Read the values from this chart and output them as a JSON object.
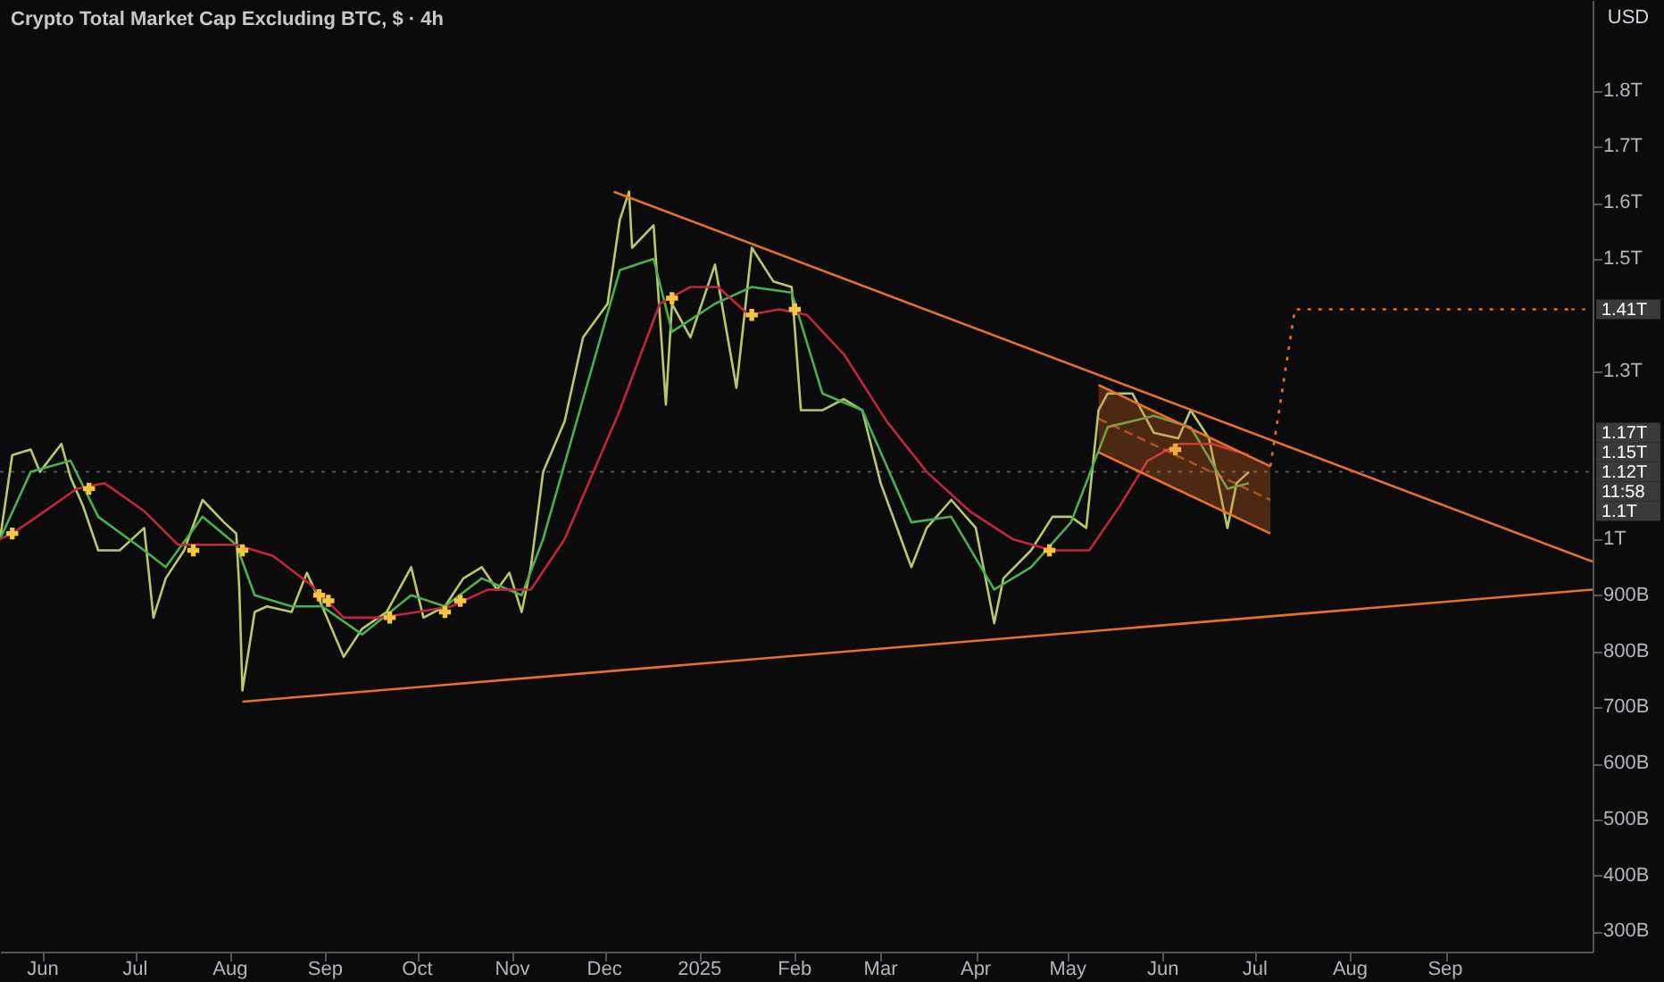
{
  "chart_data": {
    "type": "line",
    "title": "Crypto Total Market Cap Excluding BTC, $ · 4h",
    "xlim": [
      "2024-05-18",
      "2025-10-19"
    ],
    "xticks": [
      {
        "value": "2024-06-01",
        "label": "Jun"
      },
      {
        "value": "2024-07-01",
        "label": "Jul"
      },
      {
        "value": "2024-08-01",
        "label": "Aug"
      },
      {
        "value": "2024-09-01",
        "label": "Sep"
      },
      {
        "value": "2024-10-01",
        "label": "Oct"
      },
      {
        "value": "2024-11-01",
        "label": "Nov"
      },
      {
        "value": "2024-12-01",
        "label": "Dec"
      },
      {
        "value": "2025-01-01",
        "label": "2025"
      },
      {
        "value": "2025-02-01",
        "label": "Feb"
      },
      {
        "value": "2025-03-01",
        "label": "Mar"
      },
      {
        "value": "2025-04-01",
        "label": "Apr"
      },
      {
        "value": "2025-05-01",
        "label": "May"
      },
      {
        "value": "2025-06-01",
        "label": "Jun"
      },
      {
        "value": "2025-07-01",
        "label": "Jul"
      },
      {
        "value": "2025-08-01",
        "label": "Aug"
      },
      {
        "value": "2025-09-01",
        "label": "Sep"
      }
    ],
    "ylim": [
      264000000000.0,
      1962000000000.0
    ],
    "yticks": [
      {
        "value": 300000000000.0,
        "label": "300B"
      },
      {
        "value": 400000000000.0,
        "label": "400B"
      },
      {
        "value": 500000000000.0,
        "label": "500B"
      },
      {
        "value": 600000000000.0,
        "label": "600B"
      },
      {
        "value": 700000000000.0,
        "label": "700B"
      },
      {
        "value": 800000000000.0,
        "label": "800B"
      },
      {
        "value": 900000000000.0,
        "label": "900B"
      },
      {
        "value": 1000000000000.0,
        "label": "1T"
      },
      {
        "value": 1300000000000.0,
        "label": "1.3T"
      },
      {
        "value": 1500000000000.0,
        "label": "1.5T"
      },
      {
        "value": 1600000000000.0,
        "label": "1.6T"
      },
      {
        "value": 1700000000000.0,
        "label": "1.7T"
      },
      {
        "value": 1800000000000.0,
        "label": "1.8T"
      }
    ],
    "grid": false,
    "series": [
      {
        "type": "line",
        "color": "#b9c96a",
        "x": [
          "2024-05-18",
          "2024-05-22",
          "2024-05-28",
          "2024-05-31",
          "2024-06-07",
          "2024-06-10",
          "2024-06-14",
          "2024-06-19",
          "2024-06-26",
          "2024-07-04",
          "2024-07-07",
          "2024-07-11",
          "2024-07-17",
          "2024-07-23",
          "2024-07-30",
          "2024-08-03",
          "2024-08-04",
          "2024-08-05",
          "2024-08-09",
          "2024-08-13",
          "2024-08-21",
          "2024-08-26",
          "2024-08-31",
          "2024-09-07",
          "2024-09-13",
          "2024-09-21",
          "2024-09-29",
          "2024-10-03",
          "2024-10-10",
          "2024-10-16",
          "2024-10-22",
          "2024-10-27",
          "2024-10-31",
          "2024-11-04",
          "2024-11-07",
          "2024-11-11",
          "2024-11-18",
          "2024-11-24",
          "2024-12-02",
          "2024-12-06",
          "2024-12-09",
          "2024-12-10",
          "2024-12-17",
          "2024-12-21",
          "2024-12-23",
          "2024-12-29",
          "2025-01-06",
          "2025-01-13",
          "2025-01-18",
          "2025-01-25",
          "2025-01-31",
          "2025-02-03",
          "2025-02-10",
          "2025-02-17",
          "2025-02-23",
          "2025-03-01",
          "2025-03-11",
          "2025-03-16",
          "2025-03-24",
          "2025-04-01",
          "2025-04-07",
          "2025-04-10",
          "2025-04-19",
          "2025-04-26",
          "2025-05-02",
          "2025-05-07",
          "2025-05-11",
          "2025-05-14",
          "2025-05-22",
          "2025-05-29",
          "2025-06-06",
          "2025-06-10",
          "2025-06-16",
          "2025-06-22",
          "2025-06-25",
          "2025-06-29"
        ],
        "values": [
          1000000000000.0,
          1150000000000.0,
          1160000000000.0,
          1120000000000.0,
          1170000000000.0,
          1110000000000.0,
          1060000000000.0,
          980000000000.0,
          980000000000.0,
          1020000000000.0,
          860000000000.0,
          930000000000.0,
          980000000000.0,
          1070000000000.0,
          1030000000000.0,
          1010000000000.0,
          910000000000.0,
          730000000000.0,
          870000000000.0,
          880000000000.0,
          870000000000.0,
          940000000000.0,
          880000000000.0,
          790000000000.0,
          840000000000.0,
          870000000000.0,
          950000000000.0,
          860000000000.0,
          880000000000.0,
          930000000000.0,
          950000000000.0,
          910000000000.0,
          940000000000.0,
          870000000000.0,
          950000000000.0,
          1120000000000.0,
          1210000000000.0,
          1360000000000.0,
          1420000000000.0,
          1570000000000.0,
          1620000000000.0,
          1520000000000.0,
          1560000000000.0,
          1240000000000.0,
          1420000000000.0,
          1360000000000.0,
          1490000000000.0,
          1270000000000.0,
          1520000000000.0,
          1460000000000.0,
          1450000000000.0,
          1230000000000.0,
          1230000000000.0,
          1250000000000.0,
          1230000000000.0,
          1100000000000.0,
          950000000000.0,
          1020000000000.0,
          1070000000000.0,
          1020000000000.0,
          850000000000.0,
          930000000000.0,
          980000000000.0,
          1040000000000.0,
          1040000000000.0,
          1020000000000.0,
          1230000000000.0,
          1260000000000.0,
          1260000000000.0,
          1190000000000.0,
          1180000000000.0,
          1230000000000.0,
          1180000000000.0,
          1020000000000.0,
          1100000000000.0,
          1120000000000.0
        ]
      },
      {
        "type": "line",
        "color": "#4caf50",
        "x": [
          "2024-05-18",
          "2024-05-28",
          "2024-06-10",
          "2024-06-19",
          "2024-07-04",
          "2024-07-11",
          "2024-07-23",
          "2024-08-03",
          "2024-08-09",
          "2024-08-21",
          "2024-08-31",
          "2024-09-13",
          "2024-09-29",
          "2024-10-10",
          "2024-10-22",
          "2024-11-04",
          "2024-11-11",
          "2024-11-24",
          "2024-12-06",
          "2024-12-17",
          "2024-12-23",
          "2025-01-06",
          "2025-01-18",
          "2025-01-31",
          "2025-02-10",
          "2025-02-23",
          "2025-03-11",
          "2025-03-24",
          "2025-04-07",
          "2025-04-19",
          "2025-05-02",
          "2025-05-14",
          "2025-05-29",
          "2025-06-10",
          "2025-06-22",
          "2025-06-29"
        ],
        "values": [
          1000000000000.0,
          1120000000000.0,
          1140000000000.0,
          1040000000000.0,
          980000000000.0,
          950000000000.0,
          1040000000000.0,
          990000000000.0,
          900000000000.0,
          880000000000.0,
          880000000000.0,
          830000000000.0,
          900000000000.0,
          880000000000.0,
          930000000000.0,
          900000000000.0,
          1000000000000.0,
          1250000000000.0,
          1480000000000.0,
          1500000000000.0,
          1370000000000.0,
          1420000000000.0,
          1450000000000.0,
          1440000000000.0,
          1260000000000.0,
          1230000000000.0,
          1030000000000.0,
          1040000000000.0,
          910000000000.0,
          950000000000.0,
          1030000000000.0,
          1200000000000.0,
          1220000000000.0,
          1200000000000.0,
          1090000000000.0,
          1100000000000.0
        ]
      },
      {
        "type": "line",
        "color": "#c2263f",
        "x": [
          "2024-05-18",
          "2024-05-22",
          "2024-05-30",
          "2024-06-12",
          "2024-06-21",
          "2024-07-04",
          "2024-07-15",
          "2024-07-27",
          "2024-08-03",
          "2024-08-15",
          "2024-08-27",
          "2024-09-07",
          "2024-09-19",
          "2024-10-01",
          "2024-10-12",
          "2024-10-24",
          "2024-11-07",
          "2024-11-18",
          "2024-12-06",
          "2024-12-19",
          "2024-12-29",
          "2025-01-07",
          "2025-01-17",
          "2025-01-27",
          "2025-02-05",
          "2025-02-17",
          "2025-03-03",
          "2025-03-16",
          "2025-03-30",
          "2025-04-13",
          "2025-04-26",
          "2025-05-08",
          "2025-05-18",
          "2025-05-27",
          "2025-06-06",
          "2025-06-17",
          "2025-06-29"
        ],
        "values": [
          1000000000000.0,
          1010000000000.0,
          1040000000000.0,
          1090000000000.0,
          1100000000000.0,
          1050000000000.0,
          990000000000.0,
          990000000000.0,
          990000000000.0,
          970000000000.0,
          920000000000.0,
          860000000000.0,
          860000000000.0,
          870000000000.0,
          880000000000.0,
          910000000000.0,
          910000000000.0,
          1000000000000.0,
          1230000000000.0,
          1420000000000.0,
          1450000000000.0,
          1450000000000.0,
          1400000000000.0,
          1410000000000.0,
          1400000000000.0,
          1330000000000.0,
          1210000000000.0,
          1120000000000.0,
          1050000000000.0,
          1000000000000.0,
          980000000000.0,
          980000000000.0,
          1060000000000.0,
          1140000000000.0,
          1170000000000.0,
          1170000000000.0,
          1150000000000.0
        ]
      },
      {
        "type": "scatter",
        "color": "#f5c542",
        "marker": "cross",
        "x": [
          "2024-05-22",
          "2024-06-16",
          "2024-07-20",
          "2024-08-05",
          "2024-08-30",
          "2024-09-02",
          "2024-09-22",
          "2024-10-10",
          "2024-10-15",
          "2024-12-23",
          "2025-01-18",
          "2025-02-01",
          "2025-04-25",
          "2025-06-05"
        ],
        "values": [
          1010000000000.0,
          1090000000000.0,
          980000000000.0,
          980000000000.0,
          900000000000.0,
          890000000000.0,
          860000000000.0,
          870000000000.0,
          890000000000.0,
          1430000000000.0,
          1400000000000.0,
          1410000000000.0,
          980000000000.0,
          1160000000000.0
        ]
      },
      {
        "type": "line",
        "color": "#e8702a",
        "x": [
          "2024-12-04",
          "2025-10-19"
        ],
        "values": [
          1620000000000.0,
          960000000000.0
        ]
      },
      {
        "type": "line",
        "color": "#e8702a",
        "x": [
          "2024-08-05",
          "2025-10-19"
        ],
        "values": [
          710000000000.0,
          910000000000.0
        ]
      },
      {
        "type": "line",
        "color": "#e8702a",
        "line_style": "dashed",
        "x": [
          "2025-05-11",
          "2025-07-06"
        ],
        "values": [
          1215000000000.0,
          1070000000000.0
        ],
        "lower": [
          1155000000000.0,
          1010000000000.0
        ],
        "upper": [
          1275000000000.0,
          1130000000000.0
        ]
      },
      {
        "type": "line",
        "color": "#e8702a",
        "x": [
          "2025-05-11",
          "2025-07-06"
        ],
        "values": [
          1155000000000.0,
          1010000000000.0
        ]
      },
      {
        "type": "line",
        "color": "#e8702a",
        "x": [
          "2025-05-11",
          "2025-07-06"
        ],
        "values": [
          1275000000000.0,
          1130000000000.0
        ]
      },
      {
        "type": "line",
        "color": "#e8702a",
        "line_style": "dotted",
        "x": [
          "2025-07-06",
          "2025-07-14",
          "2025-10-12"
        ],
        "values": [
          1130000000000.0,
          1410000000000.0,
          1410000000000.0
        ]
      }
    ],
    "ref_lines": [
      {
        "axis": "y",
        "value": 1120000000000.0,
        "label": "1.12T",
        "color": "#555555",
        "line_style": "dotted"
      }
    ],
    "annotations": [
      "USD",
      {
        "text": "1.41T",
        "x": "2025-10-12",
        "y": 1410000000000.0
      },
      "1.17T",
      "1.15T",
      "11:58",
      "1.1T"
    ]
  }
}
